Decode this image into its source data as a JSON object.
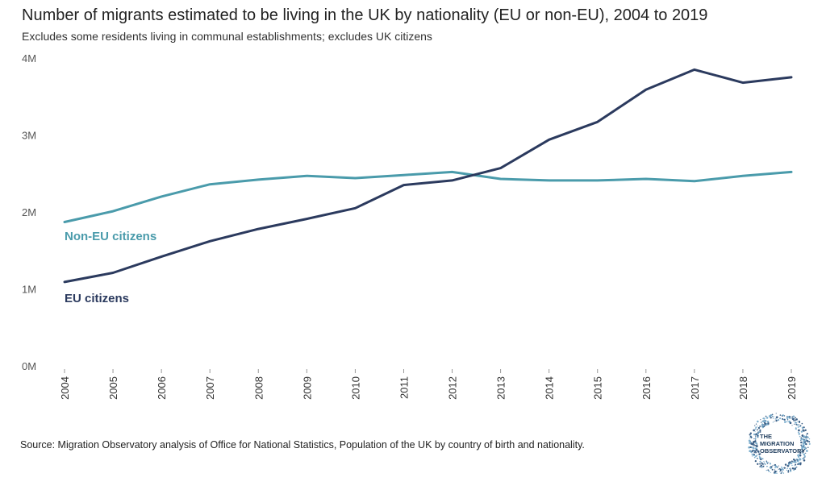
{
  "title": "Number of migrants estimated to be living in the UK by nationality (EU or non-EU), 2004 to 2019",
  "subtitle": "Excludes some residents living in communal establishments; excludes UK citizens",
  "source": "Source: Migration Observatory analysis of Office for National Statistics, Population of the UK by country of birth and nationality.",
  "logo": {
    "line1": "THE",
    "line2": "MIGRATION",
    "line3": "OBSERVATORY"
  },
  "chart_data": {
    "type": "line",
    "title": "Number of migrants estimated to be living in the UK by nationality (EU or non-EU), 2004 to 2019",
    "x": [
      "2004",
      "2005",
      "2006",
      "2007",
      "2008",
      "2009",
      "2010",
      "2011",
      "2012",
      "2013",
      "2014",
      "2015",
      "2016",
      "2017",
      "2018",
      "2019"
    ],
    "ylim": [
      0,
      4000000
    ],
    "yticks": [
      {
        "value": 0,
        "label": "0M"
      },
      {
        "value": 1000000,
        "label": "1M"
      },
      {
        "value": 2000000,
        "label": "2M"
      },
      {
        "value": 3000000,
        "label": "3M"
      },
      {
        "value": 4000000,
        "label": "4M"
      }
    ],
    "grid": false,
    "series": [
      {
        "name": "Non-EU citizens",
        "color": "#4a9bab",
        "values": [
          1880000,
          2020000,
          2210000,
          2370000,
          2430000,
          2480000,
          2450000,
          2490000,
          2530000,
          2440000,
          2420000,
          2420000,
          2440000,
          2410000,
          2480000,
          2530000
        ]
      },
      {
        "name": "EU citizens",
        "color": "#2b3a5e",
        "values": [
          1100000,
          1220000,
          1430000,
          1630000,
          1790000,
          1920000,
          2060000,
          2360000,
          2420000,
          2580000,
          2950000,
          3180000,
          3600000,
          3860000,
          3690000,
          3760000
        ]
      }
    ]
  }
}
